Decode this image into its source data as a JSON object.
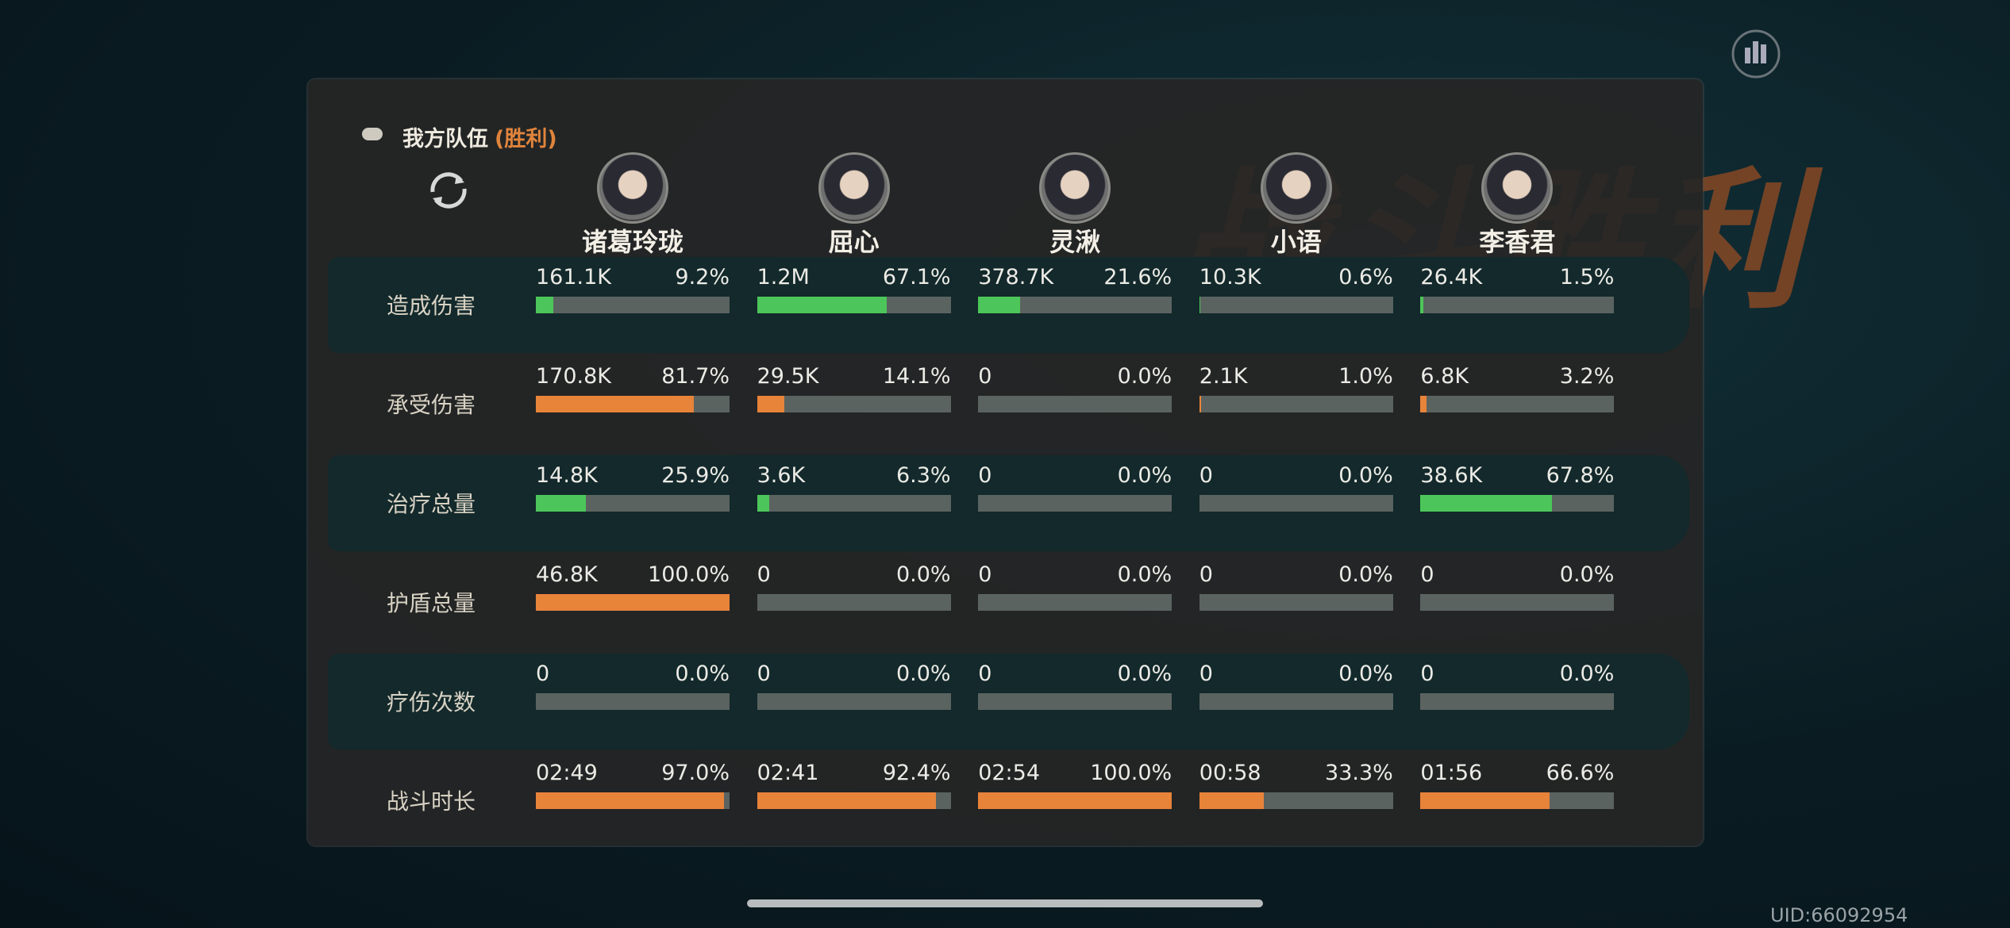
{
  "background_title": "战斗胜利",
  "header": {
    "title": "我方队伍",
    "status": "(胜利)"
  },
  "players": [
    "诸葛玲珑",
    "屈心",
    "灵湫",
    "小语",
    "李香君"
  ],
  "rows": [
    {
      "label": "造成伤害",
      "bar_color": "#4cc65a",
      "cells": [
        {
          "value": "161.1K",
          "percent": 9.2,
          "percent_label": "9.2%"
        },
        {
          "value": "1.2M",
          "percent": 67.1,
          "percent_label": "67.1%"
        },
        {
          "value": "378.7K",
          "percent": 21.6,
          "percent_label": "21.6%"
        },
        {
          "value": "10.3K",
          "percent": 0.6,
          "percent_label": "0.6%"
        },
        {
          "value": "26.4K",
          "percent": 1.5,
          "percent_label": "1.5%"
        }
      ]
    },
    {
      "label": "承受伤害",
      "bar_color": "#e8833a",
      "cells": [
        {
          "value": "170.8K",
          "percent": 81.7,
          "percent_label": "81.7%"
        },
        {
          "value": "29.5K",
          "percent": 14.1,
          "percent_label": "14.1%"
        },
        {
          "value": "0",
          "percent": 0,
          "percent_label": "0.0%"
        },
        {
          "value": "2.1K",
          "percent": 1.0,
          "percent_label": "1.0%"
        },
        {
          "value": "6.8K",
          "percent": 3.2,
          "percent_label": "3.2%"
        }
      ]
    },
    {
      "label": "治疗总量",
      "bar_color": "#4cc65a",
      "cells": [
        {
          "value": "14.8K",
          "percent": 25.9,
          "percent_label": "25.9%"
        },
        {
          "value": "3.6K",
          "percent": 6.3,
          "percent_label": "6.3%"
        },
        {
          "value": "0",
          "percent": 0,
          "percent_label": "0.0%"
        },
        {
          "value": "0",
          "percent": 0,
          "percent_label": "0.0%"
        },
        {
          "value": "38.6K",
          "percent": 67.8,
          "percent_label": "67.8%"
        }
      ]
    },
    {
      "label": "护盾总量",
      "bar_color": "#e8833a",
      "cells": [
        {
          "value": "46.8K",
          "percent": 100,
          "percent_label": "100.0%"
        },
        {
          "value": "0",
          "percent": 0,
          "percent_label": "0.0%"
        },
        {
          "value": "0",
          "percent": 0,
          "percent_label": "0.0%"
        },
        {
          "value": "0",
          "percent": 0,
          "percent_label": "0.0%"
        },
        {
          "value": "0",
          "percent": 0,
          "percent_label": "0.0%"
        }
      ]
    },
    {
      "label": "疗伤次数",
      "bar_color": "#4cc65a",
      "cells": [
        {
          "value": "0",
          "percent": 0,
          "percent_label": "0.0%"
        },
        {
          "value": "0",
          "percent": 0,
          "percent_label": "0.0%"
        },
        {
          "value": "0",
          "percent": 0,
          "percent_label": "0.0%"
        },
        {
          "value": "0",
          "percent": 0,
          "percent_label": "0.0%"
        },
        {
          "value": "0",
          "percent": 0,
          "percent_label": "0.0%"
        }
      ]
    },
    {
      "label": "战斗时长",
      "bar_color": "#e8833a",
      "cells": [
        {
          "value": "02:49",
          "percent": 97.0,
          "percent_label": "97.0%"
        },
        {
          "value": "02:41",
          "percent": 92.4,
          "percent_label": "92.4%"
        },
        {
          "value": "02:54",
          "percent": 100,
          "percent_label": "100.0%"
        },
        {
          "value": "00:58",
          "percent": 33.3,
          "percent_label": "33.3%"
        },
        {
          "value": "01:56",
          "percent": 66.6,
          "percent_label": "66.6%"
        }
      ]
    }
  ],
  "uid": "UID:66092954"
}
